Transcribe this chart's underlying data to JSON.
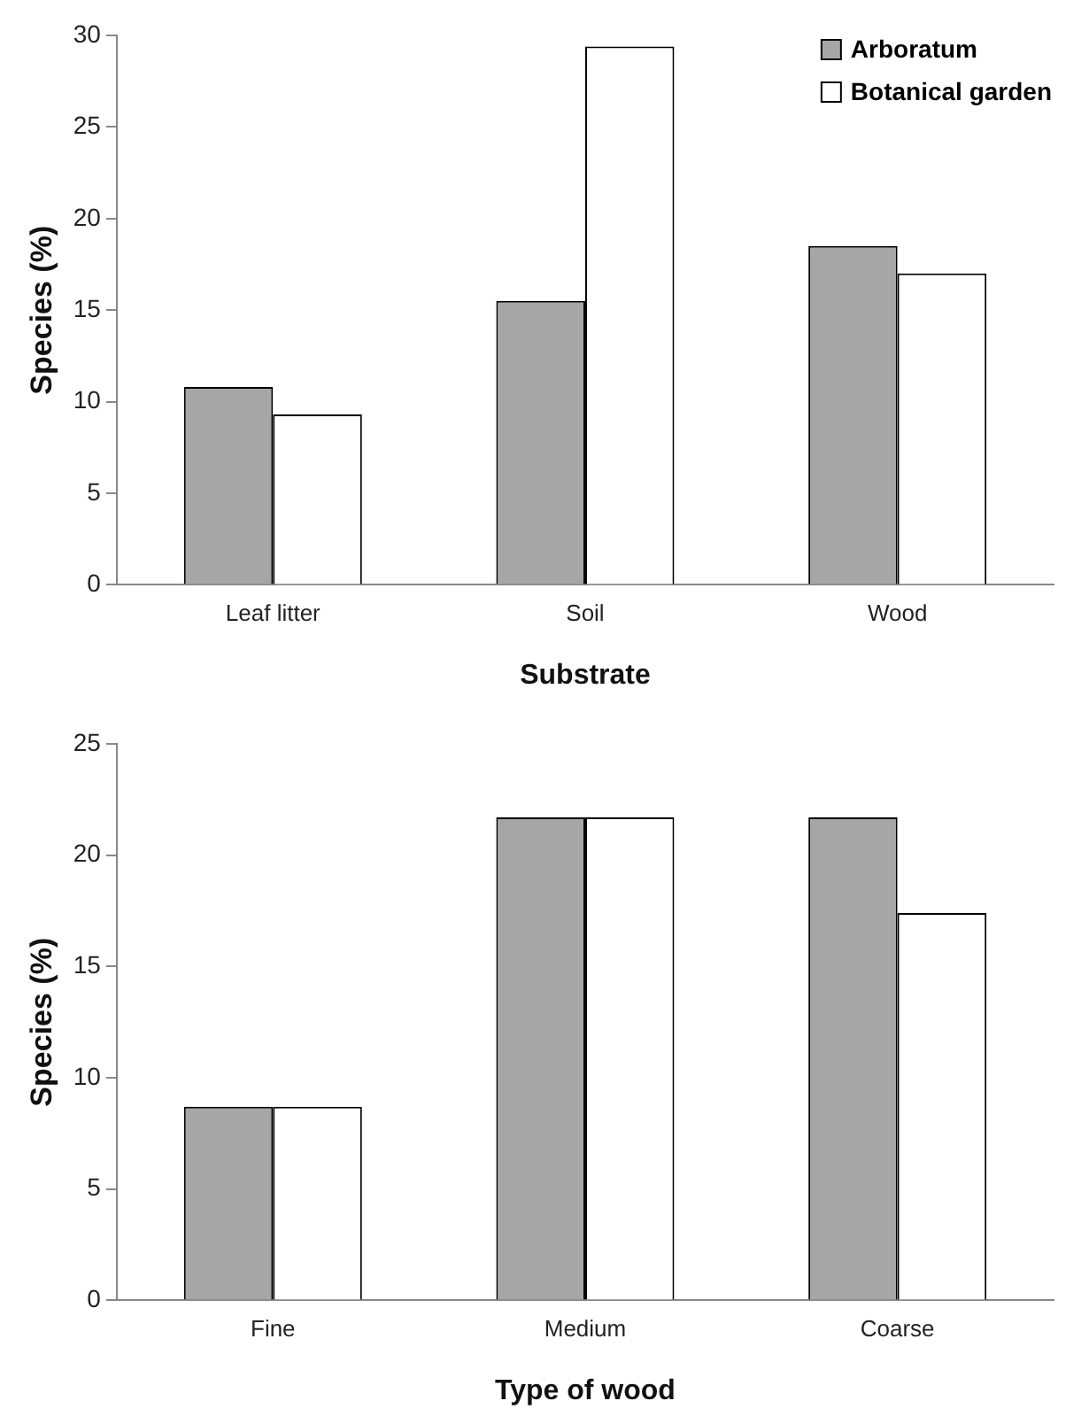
{
  "chart_data": [
    {
      "type": "bar",
      "xlabel": "Substrate",
      "ylabel": "Species (%)",
      "categories": [
        "Leaf litter",
        "Soil",
        "Wood"
      ],
      "series": [
        {
          "name": "Arboratum",
          "color": "#a6a6a6",
          "values": [
            10.8,
            15.5,
            18.5
          ]
        },
        {
          "name": "Botanical garden",
          "color": "#ffffff",
          "values": [
            9.3,
            29.4,
            17.0
          ]
        }
      ],
      "ylim": [
        0,
        30
      ],
      "yticks": [
        0,
        5,
        10,
        15,
        20,
        25,
        30
      ],
      "grid": false,
      "legend": "top right"
    },
    {
      "type": "bar",
      "xlabel": "Type of wood",
      "ylabel": "Species (%)",
      "categories": [
        "Fine",
        "Medium",
        "Coarse"
      ],
      "series": [
        {
          "color": "#a6a6a6",
          "values": [
            8.7,
            21.7,
            21.7
          ]
        },
        {
          "color": "#ffffff",
          "values": [
            8.7,
            21.7,
            17.4
          ]
        }
      ],
      "ylim": [
        0,
        25
      ],
      "yticks": [
        0,
        5,
        10,
        15,
        20,
        25
      ],
      "grid": false
    }
  ]
}
